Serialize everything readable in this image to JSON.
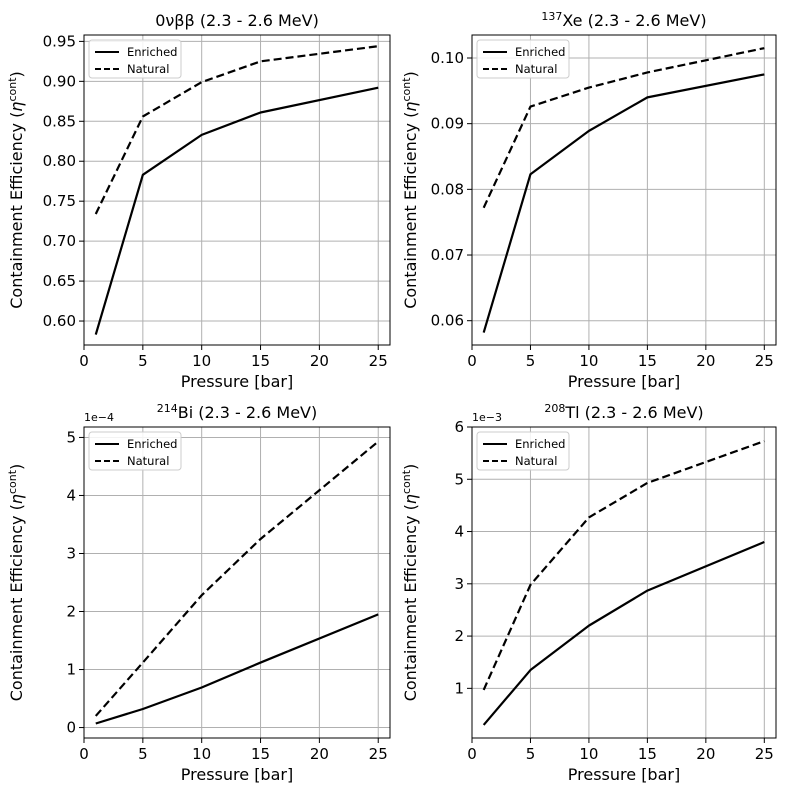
{
  "figure": {
    "legend_labels": [
      "Enriched",
      "Natural"
    ],
    "xlabel": "Pressure [bar]",
    "ylabel_main": "Containment Efficiency (",
    "ylabel_sym": "η",
    "ylabel_sup": "cont",
    "ylabel_close": ")"
  },
  "chart_data": [
    {
      "type": "line",
      "title": "0νββ (2.3 - 2.6 MeV)",
      "title_sup": "",
      "title_main": "0νββ (2.3 - 2.6 MeV)",
      "xlabel": "Pressure [bar]",
      "ylabel": "Containment Efficiency (ηcont)",
      "x": [
        1,
        5,
        10,
        15,
        25
      ],
      "xlim": [
        0,
        26
      ],
      "ylim": [
        0.57,
        0.958
      ],
      "xticks": [
        "0",
        "5",
        "10",
        "15",
        "20",
        "25"
      ],
      "yticks": [
        "0.60",
        "0.65",
        "0.70",
        "0.75",
        "0.80",
        "0.85",
        "0.90",
        "0.95"
      ],
      "ytick_values": [
        0.6,
        0.65,
        0.7,
        0.75,
        0.8,
        0.85,
        0.9,
        0.95
      ],
      "offset": "",
      "legend": "top-left",
      "grid": true,
      "series": [
        {
          "name": "Enriched",
          "style": "solid",
          "values": [
            0.583,
            0.783,
            0.833,
            0.861,
            0.892
          ]
        },
        {
          "name": "Natural",
          "style": "dashed",
          "values": [
            0.734,
            0.856,
            0.899,
            0.925,
            0.944
          ]
        }
      ]
    },
    {
      "type": "line",
      "title": "137Xe (2.3 - 2.6 MeV)",
      "title_sup": "137",
      "title_main": "Xe (2.3 - 2.6 MeV)",
      "xlabel": "Pressure [bar]",
      "ylabel": "Containment Efficiency (ηcont)",
      "x": [
        1,
        5,
        10,
        15,
        25
      ],
      "xlim": [
        0,
        26
      ],
      "ylim": [
        0.0563,
        0.1035
      ],
      "xticks": [
        "0",
        "5",
        "10",
        "15",
        "20",
        "25"
      ],
      "yticks": [
        "0.06",
        "0.07",
        "0.08",
        "0.09",
        "0.10"
      ],
      "ytick_values": [
        0.06,
        0.07,
        0.08,
        0.09,
        0.1
      ],
      "offset": "",
      "legend": "top-left",
      "grid": true,
      "series": [
        {
          "name": "Enriched",
          "style": "solid",
          "values": [
            0.0582,
            0.0823,
            0.0889,
            0.094,
            0.0975
          ]
        },
        {
          "name": "Natural",
          "style": "dashed",
          "values": [
            0.0772,
            0.0926,
            0.0955,
            0.0978,
            0.1015
          ]
        }
      ]
    },
    {
      "type": "line",
      "title": "214Bi (2.3 - 2.6 MeV)",
      "title_sup": "214",
      "title_main": "Bi (2.3 - 2.6 MeV)",
      "xlabel": "Pressure [bar]",
      "ylabel": "Containment Efficiency (ηcont)",
      "x": [
        1,
        5,
        10,
        15,
        25
      ],
      "xlim": [
        0,
        26
      ],
      "ylim": [
        -0.18,
        5.18
      ],
      "xticks": [
        "0",
        "5",
        "10",
        "15",
        "20",
        "25"
      ],
      "yticks": [
        "0",
        "1",
        "2",
        "3",
        "4",
        "5"
      ],
      "ytick_values": [
        0,
        1,
        2,
        3,
        4,
        5
      ],
      "offset": "1e−4",
      "legend": "top-left",
      "grid": true,
      "series": [
        {
          "name": "Enriched",
          "style": "solid",
          "values": [
            0.07,
            0.32,
            0.69,
            1.12,
            1.95
          ]
        },
        {
          "name": "Natural",
          "style": "dashed",
          "values": [
            0.2,
            1.12,
            2.28,
            3.25,
            4.93
          ]
        }
      ]
    },
    {
      "type": "line",
      "title": "208Tl (2.3 - 2.6 MeV)",
      "title_sup": "208",
      "title_main": "Tl (2.3 - 2.6 MeV)",
      "xlabel": "Pressure [bar]",
      "ylabel": "Containment Efficiency (ηcont)",
      "x": [
        1,
        5,
        10,
        15,
        25
      ],
      "xlim": [
        0,
        26
      ],
      "ylim": [
        0.05,
        6.0
      ],
      "xticks": [
        "0",
        "5",
        "10",
        "15",
        "20",
        "25"
      ],
      "yticks": [
        "1",
        "2",
        "3",
        "4",
        "5",
        "6"
      ],
      "ytick_values": [
        1,
        2,
        3,
        4,
        5,
        6
      ],
      "offset": "1e−3",
      "legend": "top-left",
      "grid": true,
      "series": [
        {
          "name": "Enriched",
          "style": "solid",
          "values": [
            0.3,
            1.35,
            2.2,
            2.87,
            3.8
          ]
        },
        {
          "name": "Natural",
          "style": "dashed",
          "values": [
            0.97,
            2.98,
            4.27,
            4.93,
            5.73
          ]
        }
      ]
    }
  ]
}
